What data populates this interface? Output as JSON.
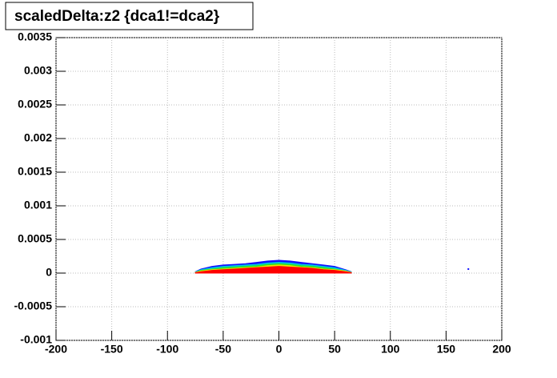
{
  "chart_data": {
    "type": "area",
    "title": "scaledDelta:z2 {dca1!=dca2}",
    "x": [
      -75,
      -70,
      -60,
      -50,
      -40,
      -30,
      -20,
      -10,
      0,
      10,
      20,
      30,
      40,
      50,
      60,
      65
    ],
    "series": [
      {
        "color": "#1010ff",
        "values": [
          2e-05,
          6e-05,
          0.0001,
          0.00012,
          0.00013,
          0.00014,
          0.00016,
          0.00018,
          0.00019,
          0.00018,
          0.00016,
          0.00014,
          0.00012,
          0.0001,
          5e-05,
          2e-05
        ]
      },
      {
        "color": "#00c8e0",
        "values": [
          1.5e-05,
          5e-05,
          8e-05,
          0.0001,
          0.00011,
          0.00012,
          0.00013,
          0.00015,
          0.00016,
          0.00015,
          0.00013,
          0.00012,
          0.0001,
          8e-05,
          4e-05,
          1.5e-05
        ]
      },
      {
        "color": "#30e020",
        "values": [
          1e-05,
          4e-05,
          6e-05,
          8e-05,
          9e-05,
          0.0001,
          0.00011,
          0.00013,
          0.00014,
          0.00013,
          0.00011,
          0.0001,
          8e-05,
          6e-05,
          3e-05,
          1e-05
        ]
      },
      {
        "color": "#f0e000",
        "values": [
          1e-05,
          3e-05,
          5e-05,
          6e-05,
          7e-05,
          8e-05,
          9e-05,
          0.00011,
          0.00012,
          0.00011,
          9e-05,
          8e-05,
          6e-05,
          5e-05,
          3e-05,
          1e-05
        ]
      },
      {
        "color": "#ff0000",
        "values": [
          5e-06,
          2e-05,
          4e-05,
          5e-05,
          6e-05,
          7e-05,
          8e-05,
          9e-05,
          0.0001,
          9e-05,
          8e-05,
          7e-05,
          5e-05,
          4e-05,
          2e-05,
          5e-06
        ]
      }
    ],
    "outliers": {
      "color": "#1010ff",
      "x": [
        170
      ],
      "values": [
        6e-05
      ]
    },
    "xlim": [
      -200,
      200
    ],
    "xticks": [
      -200,
      -150,
      -100,
      -50,
      0,
      50,
      100,
      150,
      200
    ],
    "ylim": [
      -0.001,
      0.0035
    ],
    "yticks": [
      -0.001,
      -0.0005,
      0,
      0.0005,
      0.001,
      0.0015,
      0.002,
      0.0025,
      0.003,
      0.0035
    ],
    "grid": true
  }
}
